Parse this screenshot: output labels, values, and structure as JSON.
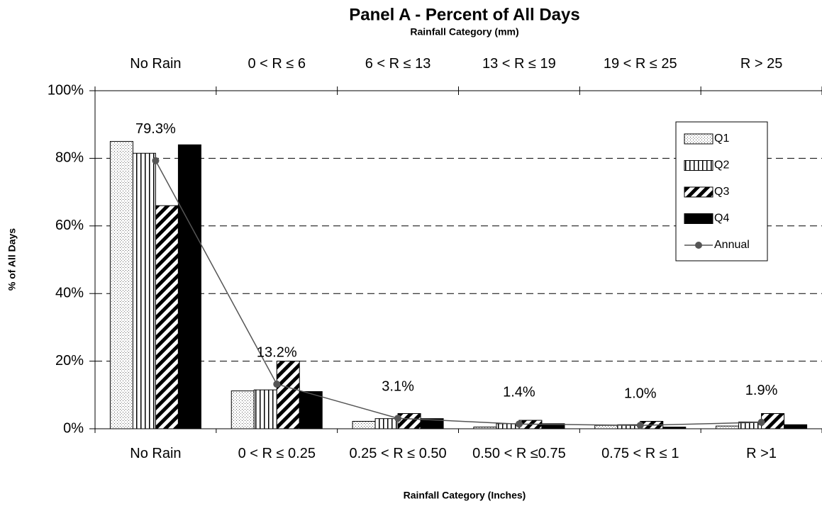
{
  "chart_data": {
    "type": "bar",
    "title": "Panel A - Percent of All Days",
    "subtitle": "Rainfall Category (mm)",
    "top_categories": [
      "No Rain",
      "0 < R ≤ 6",
      "6 < R ≤ 13",
      "13 < R ≤ 19",
      "19 < R ≤ 25",
      "R > 25"
    ],
    "categories": [
      "No Rain",
      "0 < R ≤ 0.25",
      "0.25 < R ≤ 0.50",
      "0.50 < R ≤0.75",
      "0.75 < R ≤ 1",
      "R >1"
    ],
    "x_label": "Rainfall Category (Inches)",
    "y_label": "% of All Days",
    "series": [
      {
        "name": "Q1",
        "pattern": "dots",
        "values": [
          85,
          11.2,
          2.2,
          0.5,
          1.0,
          0.8
        ]
      },
      {
        "name": "Q2",
        "pattern": "vertical",
        "values": [
          81.5,
          11.5,
          3.0,
          1.5,
          1.2,
          2.0
        ]
      },
      {
        "name": "Q3",
        "pattern": "diagonal",
        "values": [
          66,
          20,
          4.5,
          2.5,
          2.2,
          4.5
        ]
      },
      {
        "name": "Q4",
        "color": "#000000",
        "values": [
          84,
          11,
          3.0,
          1.5,
          0.5,
          1.2
        ]
      },
      {
        "name": "Annual",
        "type": "line",
        "color": "#555555",
        "values": [
          79.3,
          13.2,
          3.1,
          1.4,
          1.0,
          1.9
        ],
        "value_labels": [
          "79.3%",
          "13.2%",
          "3.1%",
          "1.4%",
          "1.0%",
          "1.9%"
        ]
      }
    ],
    "ylim": [
      0,
      100
    ],
    "yticks": [
      {
        "value": 0,
        "label": "0%"
      },
      {
        "value": 20,
        "label": "20%"
      },
      {
        "value": 40,
        "label": "40%"
      },
      {
        "value": 60,
        "label": "60%"
      },
      {
        "value": 80,
        "label": "80%"
      },
      {
        "value": 100,
        "label": "100%"
      }
    ],
    "grid": true,
    "legend": "upper right"
  }
}
